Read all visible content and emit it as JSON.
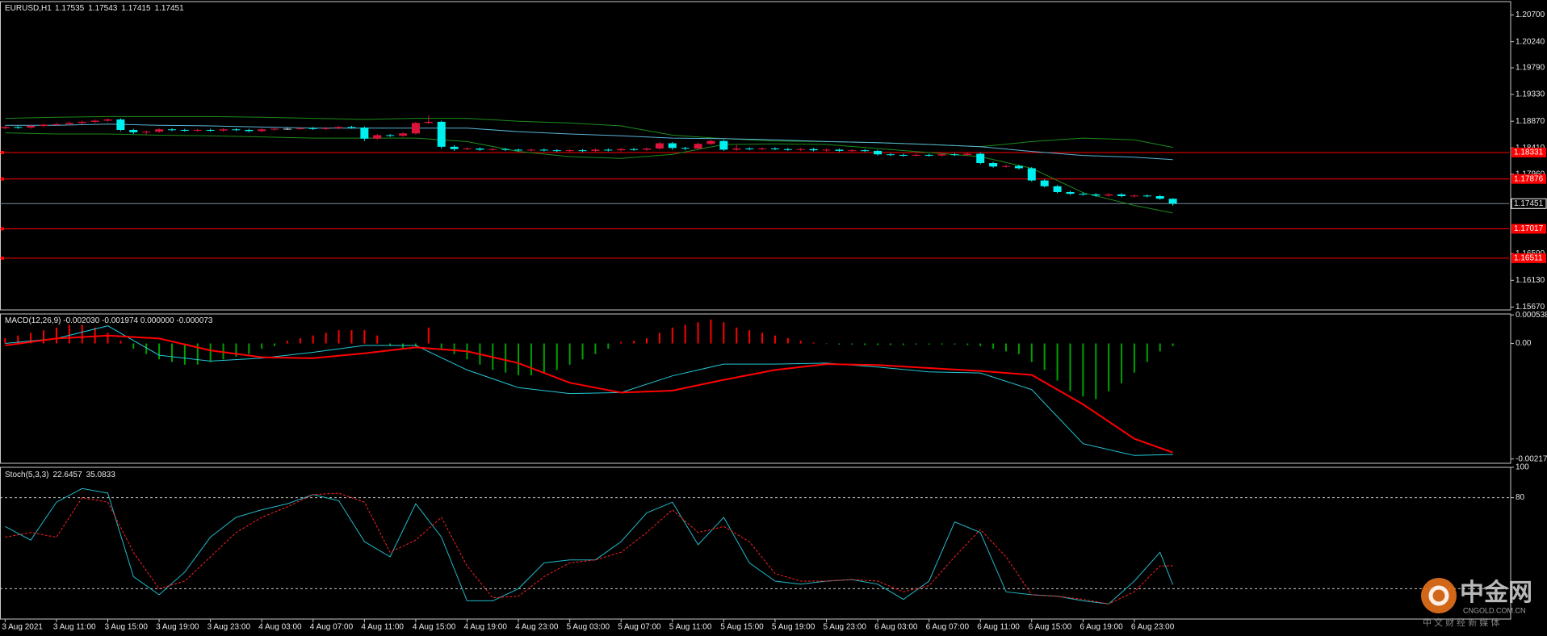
{
  "chart_data": [
    {
      "type": "candlestick",
      "title": "EURUSD,H1",
      "open": [
        1.1875,
        1.1877,
        1.1876,
        1.1879,
        1.1881,
        1.1882,
        1.1884,
        1.1886,
        1.1888,
        1.189,
        1.1872,
        1.1868,
        1.1869,
        1.1873,
        1.1872,
        1.1871,
        1.1872,
        1.1871,
        1.1873,
        1.1872,
        1.187,
        1.1873,
        1.1874,
        1.1874,
        1.1875,
        1.1874,
        1.1875,
        1.1877,
        1.1876,
        1.1857,
        1.1863,
        1.1862,
        1.1866,
        1.1884,
        1.1886,
        1.1843,
        1.1839,
        1.184,
        1.1838,
        1.1839,
        1.1838,
        1.1837,
        1.1838,
        1.1837,
        1.1836,
        1.1837,
        1.1836,
        1.1838,
        1.1837,
        1.1839,
        1.1838,
        1.184,
        1.1849,
        1.1841,
        1.184,
        1.1848,
        1.1853,
        1.1838,
        1.184,
        1.1839,
        1.184,
        1.1839,
        1.1838,
        1.1839,
        1.1837,
        1.1838,
        1.1836,
        1.1837,
        1.1836,
        1.183,
        1.1829,
        1.1828,
        1.1829,
        1.1828,
        1.183,
        1.1829,
        1.1831,
        1.1815,
        1.1809,
        1.181,
        1.1806,
        1.1785,
        1.1775,
        1.1765,
        1.1762,
        1.1761,
        1.1759,
        1.1761,
        1.1758,
        1.1759,
        1.1758,
        1.17535
      ],
      "high": [
        1.1879,
        1.1879,
        1.1881,
        1.1883,
        1.1884,
        1.1886,
        1.1888,
        1.189,
        1.1892,
        1.1892,
        1.1874,
        1.1871,
        1.1875,
        1.1875,
        1.1874,
        1.1874,
        1.1874,
        1.1875,
        1.1875,
        1.1874,
        1.1875,
        1.1876,
        1.1876,
        1.1877,
        1.1877,
        1.1877,
        1.1879,
        1.1879,
        1.1878,
        1.1865,
        1.1865,
        1.1868,
        1.1886,
        1.1897,
        1.1888,
        1.1846,
        1.1842,
        1.1842,
        1.1841,
        1.1841,
        1.184,
        1.184,
        1.184,
        1.1839,
        1.1839,
        1.1839,
        1.184,
        1.184,
        1.1841,
        1.1841,
        1.1842,
        1.1851,
        1.1851,
        1.1843,
        1.185,
        1.1855,
        1.1855,
        1.1846,
        1.1842,
        1.1842,
        1.1842,
        1.1841,
        1.1841,
        1.1841,
        1.184,
        1.184,
        1.1839,
        1.1839,
        1.1838,
        1.1832,
        1.1831,
        1.1831,
        1.1831,
        1.1832,
        1.1832,
        1.1833,
        1.1833,
        1.1817,
        1.1812,
        1.1812,
        1.1808,
        1.1787,
        1.1777,
        1.1767,
        1.1764,
        1.1763,
        1.1763,
        1.1763,
        1.1761,
        1.1761,
        1.176,
        1.17543
      ],
      "low": [
        1.1873,
        1.1874,
        1.1874,
        1.1877,
        1.1879,
        1.188,
        1.1882,
        1.1884,
        1.1886,
        1.187,
        1.1865,
        1.1864,
        1.1867,
        1.187,
        1.1869,
        1.1869,
        1.1869,
        1.1869,
        1.187,
        1.1868,
        1.1868,
        1.1871,
        1.1872,
        1.1872,
        1.1872,
        1.1872,
        1.1873,
        1.1874,
        1.1853,
        1.1855,
        1.186,
        1.186,
        1.1864,
        1.1882,
        1.184,
        1.1836,
        1.1837,
        1.1836,
        1.1836,
        1.1836,
        1.1835,
        1.1835,
        1.1835,
        1.1834,
        1.1834,
        1.1834,
        1.1834,
        1.1835,
        1.1835,
        1.1836,
        1.1836,
        1.1838,
        1.1838,
        1.1837,
        1.1838,
        1.1846,
        1.1836,
        1.1836,
        1.1837,
        1.1837,
        1.1837,
        1.1836,
        1.1836,
        1.1835,
        1.1835,
        1.1834,
        1.1834,
        1.1834,
        1.1828,
        1.1827,
        1.1826,
        1.1826,
        1.1826,
        1.1826,
        1.1827,
        1.1827,
        1.1813,
        1.1807,
        1.1807,
        1.1804,
        1.1783,
        1.1773,
        1.1763,
        1.176,
        1.1759,
        1.1757,
        1.1757,
        1.1756,
        1.1756,
        1.1756,
        1.1752,
        1.17415
      ],
      "close": [
        1.1877,
        1.1876,
        1.1879,
        1.1881,
        1.1882,
        1.1884,
        1.1886,
        1.1888,
        1.189,
        1.1872,
        1.1868,
        1.1869,
        1.1873,
        1.1872,
        1.1871,
        1.1872,
        1.1871,
        1.1873,
        1.1872,
        1.187,
        1.1873,
        1.1874,
        1.1874,
        1.1875,
        1.1874,
        1.1875,
        1.1877,
        1.1876,
        1.1857,
        1.1863,
        1.1862,
        1.1866,
        1.1884,
        1.1886,
        1.1843,
        1.1839,
        1.184,
        1.1838,
        1.1839,
        1.1838,
        1.1837,
        1.1838,
        1.1837,
        1.1836,
        1.1837,
        1.1836,
        1.1838,
        1.1837,
        1.1839,
        1.1838,
        1.184,
        1.1849,
        1.1841,
        1.184,
        1.1848,
        1.1853,
        1.1838,
        1.184,
        1.1839,
        1.184,
        1.1839,
        1.1838,
        1.1839,
        1.1837,
        1.1838,
        1.1836,
        1.1837,
        1.1836,
        1.183,
        1.1829,
        1.1828,
        1.1829,
        1.1828,
        1.183,
        1.1829,
        1.1831,
        1.1815,
        1.1809,
        1.181,
        1.1806,
        1.1785,
        1.1775,
        1.1765,
        1.1762,
        1.1761,
        1.1759,
        1.1761,
        1.1758,
        1.1759,
        1.1758,
        1.17535,
        1.17451
      ],
      "up_color": "#dc143c",
      "down_color": "#00f0f0",
      "doji_color": "#d0d0d0",
      "overlay_x": [
        0,
        4,
        8,
        12,
        16,
        20,
        24,
        28,
        32,
        36,
        40,
        44,
        48,
        52,
        56,
        60,
        64,
        68,
        72,
        76,
        80,
        84,
        88,
        91
      ],
      "overlays": [
        {
          "color": "#1c8c1c",
          "values": [
            1.1892,
            1.1894,
            1.1895,
            1.1895,
            1.1895,
            1.1894,
            1.1892,
            1.189,
            1.1892,
            1.1892,
            1.1887,
            1.1884,
            1.1879,
            1.1863,
            1.1857,
            1.1853,
            1.1852,
            1.185,
            1.1847,
            1.1843,
            1.1852,
            1.1858,
            1.1855,
            1.1842
          ]
        },
        {
          "color": "#5ab4d6",
          "values": [
            1.188,
            1.188,
            1.1882,
            1.188,
            1.1879,
            1.1877,
            1.1875,
            1.1875,
            1.1875,
            1.1875,
            1.1869,
            1.1865,
            1.1862,
            1.1858,
            1.1857,
            1.1855,
            1.1852,
            1.185,
            1.1847,
            1.1843,
            1.1835,
            1.1828,
            1.1825,
            1.1821
          ]
        },
        {
          "color": "#1c8c1c",
          "values": [
            1.1867,
            1.1865,
            1.1865,
            1.1863,
            1.1862,
            1.186,
            1.1858,
            1.1858,
            1.1858,
            1.1852,
            1.1835,
            1.1826,
            1.1823,
            1.183,
            1.1847,
            1.1848,
            1.1847,
            1.184,
            1.1833,
            1.1826,
            1.1806,
            1.1764,
            1.1742,
            1.1729
          ]
        }
      ],
      "levels": [
        1.18331,
        1.17876,
        1.17017,
        1.16511
      ],
      "level_color": "#ff0000",
      "price_line_color": "#7a8aa0",
      "ylim": [
        1.1562,
        1.2093
      ],
      "yticks": [
        {
          "value": 1.207,
          "label": "1.20700"
        },
        {
          "value": 1.2024,
          "label": "1.20240"
        },
        {
          "value": 1.1979,
          "label": "1.19790"
        },
        {
          "value": 1.1933,
          "label": "1.19330"
        },
        {
          "value": 1.1887,
          "label": "1.18870"
        },
        {
          "value": 1.1841,
          "label": "1.18410"
        },
        {
          "value": 1.1796,
          "label": "1.17960"
        },
        {
          "value": 1.1659,
          "label": "1.16590"
        },
        {
          "value": 1.1613,
          "label": "1.16130"
        },
        {
          "value": 1.1567,
          "label": "1.15670"
        }
      ]
    },
    {
      "type": "macd",
      "title": "MACD(12,26,9) -0.002030 -0.001974 0.000000 -0.000073",
      "histogram": [
        0.0001,
        0.00015,
        0.0002,
        0.00025,
        0.0003,
        0.00035,
        0.00035,
        0.0003,
        0.0002,
        5e-05,
        -0.0001,
        -0.0002,
        -0.0003,
        -0.00035,
        -0.0004,
        -0.0004,
        -0.00035,
        -0.0003,
        -0.00025,
        -0.0002,
        -0.0001,
        -5e-05,
        5e-05,
        0.0001,
        0.00015,
        0.0002,
        0.00025,
        0.00025,
        0.00025,
        0.00015,
        -5e-05,
        -0.0001,
        -5e-05,
        0.0003,
        -0.0001,
        -0.0002,
        -0.0003,
        -0.0004,
        -0.0005,
        -0.00055,
        -0.0006,
        -0.0006,
        -0.00055,
        -0.0005,
        -0.0004,
        -0.0003,
        -0.0002,
        -0.0001,
        3e-05,
        5e-05,
        0.0001,
        0.0002,
        0.0003,
        0.00035,
        0.0004,
        0.00045,
        0.0004,
        0.0003,
        0.00025,
        0.0002,
        0.00015,
        0.0001,
        5e-05,
        2e-05,
        -1e-05,
        -2e-05,
        -2e-05,
        -3e-05,
        -3e-05,
        -3e-05,
        -3e-05,
        -2e-05,
        -2e-05,
        -2e-05,
        -2e-05,
        -3e-05,
        -5e-05,
        -0.0001,
        -0.00015,
        -0.0002,
        -0.00035,
        -0.0005,
        -0.0007,
        -0.0009,
        -0.001,
        -0.00105,
        -0.0009,
        -0.00075,
        -0.00055,
        -0.00035,
        -0.00015,
        -5e-05
      ],
      "up_color": "#ff0000",
      "down_color": "#00a000",
      "lines_x": [
        0,
        4,
        8,
        12,
        16,
        20,
        24,
        28,
        32,
        36,
        40,
        44,
        48,
        52,
        56,
        60,
        64,
        68,
        72,
        76,
        80,
        84,
        88,
        91
      ],
      "lines": [
        {
          "color": "#22c8d8",
          "width": 1,
          "values": [
            0,
            9.3e-05,
            0.000333,
            -0.000222,
            -0.000333,
            -0.000278,
            -0.000167,
            -3.7e-05,
            -3.7e-05,
            -0.0005,
            -0.000833,
            -0.000944,
            -0.000926,
            -0.000611,
            -0.000389,
            -0.000389,
            -0.00037,
            -0.000444,
            -0.000537,
            -0.000556,
            -0.00087,
            -0.001889,
            -0.002111,
            -0.002093
          ]
        },
        {
          "color": "#ff0000",
          "width": 2,
          "values": [
            -3.7e-05,
            9.3e-05,
            0.000148,
            9.3e-05,
            -0.00013,
            -0.000259,
            -0.000278,
            -0.000185,
            -7.4e-05,
            -0.000148,
            -0.00037,
            -0.000741,
            -0.000926,
            -0.000889,
            -0.000685,
            -0.0005,
            -0.000389,
            -0.000407,
            -0.000463,
            -0.000519,
            -0.000593,
            -0.001148,
            -0.001796,
            -0.002056
          ]
        }
      ],
      "ylim": [
        -0.002259,
        0.000556
      ],
      "yticks": [
        0.000538,
        {
          "value": 0,
          "label": "0.00"
        },
        -0.002178
      ]
    },
    {
      "type": "stochastic",
      "title": "Stoch(5,3,3)",
      "x": [
        0,
        2,
        4,
        6,
        8,
        10,
        12,
        14,
        16,
        18,
        20,
        22,
        24,
        26,
        28,
        30,
        32,
        34,
        36,
        38,
        40,
        42,
        44,
        46,
        48,
        50,
        52,
        54,
        56,
        58,
        60,
        62,
        64,
        66,
        68,
        70,
        72,
        74,
        76,
        78,
        80,
        82,
        84,
        86,
        88,
        90,
        91
      ],
      "lines": [
        {
          "color": "#22b8c8",
          "dash": false,
          "values": [
            61,
            52,
            77,
            86,
            83,
            28,
            16,
            31,
            54,
            67,
            72,
            76,
            82,
            78,
            51,
            41,
            76,
            54,
            12,
            12,
            20,
            37,
            39,
            39,
            51,
            70,
            77,
            49,
            67,
            37,
            25,
            23,
            25,
            26,
            23,
            13,
            25,
            64,
            57,
            18,
            16,
            15,
            12,
            10,
            25,
            44,
            22.6457
          ]
        },
        {
          "color": "#ff2020",
          "dash": true,
          "values": [
            54,
            57,
            54,
            80,
            77,
            44,
            20,
            25,
            41,
            57,
            67,
            74,
            82,
            83,
            77,
            44,
            52,
            67,
            35,
            14,
            15,
            28,
            37,
            39,
            44,
            57,
            72,
            57,
            61,
            51,
            30,
            25,
            25,
            26,
            25,
            18,
            22,
            41,
            59,
            41,
            16,
            15,
            13,
            10,
            18,
            35,
            35.0833
          ]
        }
      ],
      "levels": [
        80,
        20
      ],
      "ylim": [
        0,
        100
      ],
      "yticks": [
        100,
        80
      ],
      "xlim": [
        -0.4,
        117.2
      ],
      "xticks": [
        {
          "value": 0,
          "label": "3 Aug 2021"
        },
        {
          "value": 4,
          "label": "3 Aug 11:00"
        },
        {
          "value": 8,
          "label": "3 Aug 15:00"
        },
        {
          "value": 12,
          "label": "3 Aug 19:00"
        },
        {
          "value": 16,
          "label": "3 Aug 23:00"
        },
        {
          "value": 20,
          "label": "4 Aug 03:00"
        },
        {
          "value": 24,
          "label": "4 Aug 07:00"
        },
        {
          "value": 28,
          "label": "4 Aug 11:00"
        },
        {
          "value": 32,
          "label": "4 Aug 15:00"
        },
        {
          "value": 36,
          "label": "4 Aug 19:00"
        },
        {
          "value": 40,
          "label": "4 Aug 23:00"
        },
        {
          "value": 44,
          "label": "5 Aug 03:00"
        },
        {
          "value": 48,
          "label": "5 Aug 07:00"
        },
        {
          "value": 52,
          "label": "5 Aug 11:00"
        },
        {
          "value": 56,
          "label": "5 Aug 15:00"
        },
        {
          "value": 60,
          "label": "5 Aug 19:00"
        },
        {
          "value": 64,
          "label": "5 Aug 23:00"
        },
        {
          "value": 68,
          "label": "6 Aug 03:00"
        },
        {
          "value": 72,
          "label": "6 Aug 07:00"
        },
        {
          "value": 76,
          "label": "6 Aug 11:00"
        },
        {
          "value": 80,
          "label": "6 Aug 15:00"
        },
        {
          "value": 84,
          "label": "6 Aug 19:00"
        },
        {
          "value": 88,
          "label": "6 Aug 23:00"
        }
      ]
    }
  ],
  "watermark": {
    "brand": "中金网",
    "site": "CNGOLD.COM.CN",
    "tagline": "中 文 财 经 新 媒 体"
  }
}
